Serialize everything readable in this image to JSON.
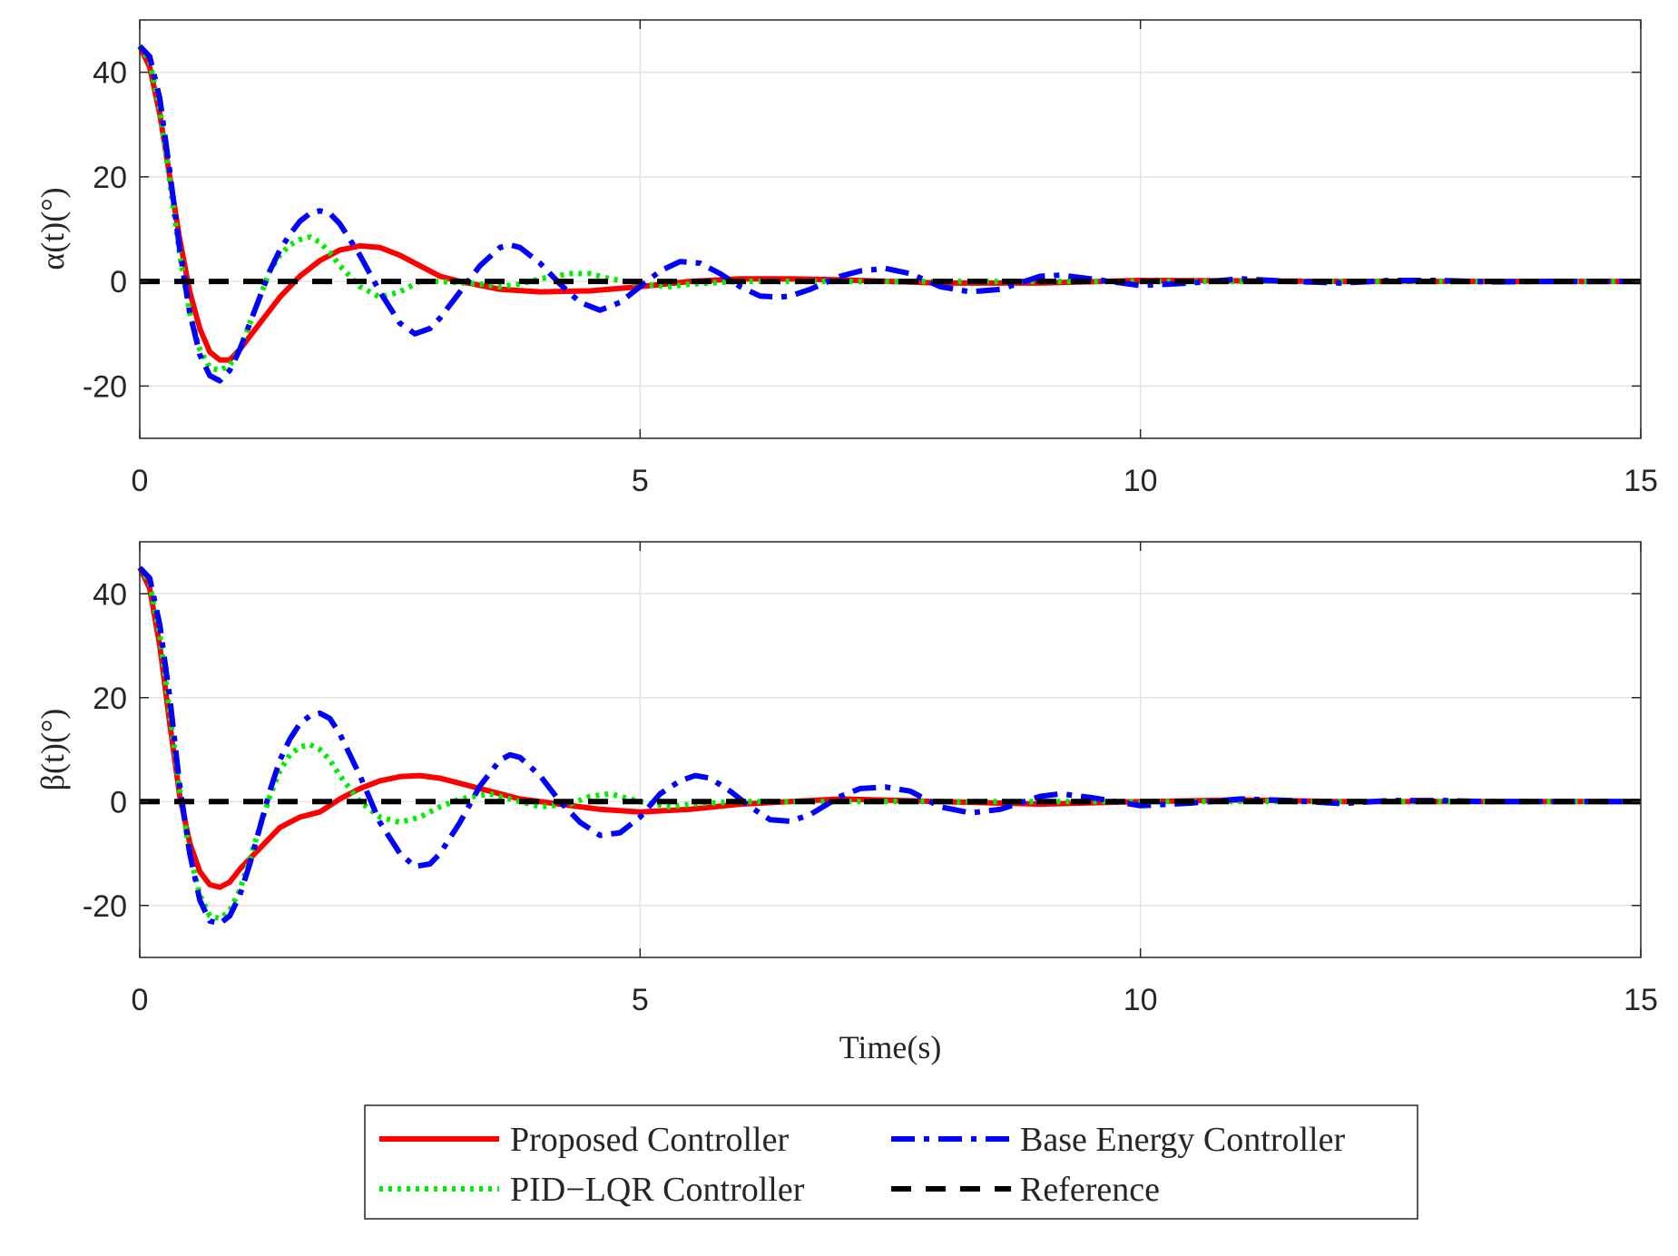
{
  "chart_data": [
    {
      "type": "line",
      "ylabel": "α(t)(°)",
      "xlabel": "",
      "xlim": [
        0,
        15
      ],
      "ylim": [
        -30,
        50
      ],
      "xticks": [
        0,
        5,
        10,
        15
      ],
      "yticks": [
        -20,
        0,
        20,
        40
      ],
      "grid": true,
      "series": [
        {
          "name": "Proposed Controller",
          "color": "#ff0000",
          "style": "solid",
          "x": [
            0,
            0.1,
            0.2,
            0.3,
            0.4,
            0.5,
            0.6,
            0.7,
            0.8,
            0.9,
            1.0,
            1.2,
            1.4,
            1.6,
            1.8,
            2.0,
            2.2,
            2.4,
            2.6,
            2.8,
            3.0,
            3.2,
            3.6,
            4.0,
            4.5,
            5.0,
            5.5,
            6.0,
            6.5,
            7.0,
            8.0,
            9.0,
            10.0,
            11.0,
            12.0,
            13.0,
            14.0,
            15.0
          ],
          "y": [
            45,
            41,
            32,
            20,
            8,
            -2,
            -9,
            -13.5,
            -15,
            -15,
            -13,
            -8,
            -3,
            1,
            4,
            6,
            6.8,
            6.5,
            5,
            3,
            1,
            0,
            -1.5,
            -2,
            -1.8,
            -1,
            0,
            0.5,
            0.5,
            0.3,
            -0.3,
            -0.3,
            0.2,
            0.1,
            0,
            0,
            0,
            0
          ]
        },
        {
          "name": "Base Energy Controller",
          "color": "#0000ff",
          "style": "dashdot",
          "x": [
            0,
            0.1,
            0.2,
            0.3,
            0.4,
            0.5,
            0.6,
            0.7,
            0.8,
            0.9,
            1.0,
            1.1,
            1.2,
            1.3,
            1.4,
            1.5,
            1.6,
            1.7,
            1.8,
            1.9,
            2.0,
            2.2,
            2.4,
            2.6,
            2.75,
            2.9,
            3.0,
            3.2,
            3.4,
            3.6,
            3.7,
            3.8,
            4.0,
            4.2,
            4.4,
            4.6,
            4.8,
            5.0,
            5.2,
            5.4,
            5.6,
            5.8,
            6.0,
            6.2,
            6.4,
            6.5,
            6.7,
            7.0,
            7.2,
            7.45,
            7.7,
            8.0,
            8.3,
            8.6,
            9.0,
            9.2,
            9.5,
            10.0,
            10.5,
            11.0,
            11.5,
            12.0,
            12.5,
            13.0,
            13.5,
            14.0,
            14.5,
            15.0
          ],
          "y": [
            45,
            43,
            35,
            21,
            6,
            -6,
            -14,
            -18,
            -19,
            -17,
            -13,
            -8,
            -3,
            2,
            6,
            9,
            11.5,
            13,
            13.5,
            13,
            11,
            5,
            -2,
            -8,
            -10,
            -9,
            -7,
            -2,
            3,
            6.5,
            7,
            6.5,
            3.5,
            -0.5,
            -4,
            -5.5,
            -4,
            -1,
            2,
            3.8,
            3.5,
            1.5,
            -1,
            -2.8,
            -3,
            -2.8,
            -1.5,
            1,
            2,
            2.5,
            1.5,
            -1,
            -2,
            -1.5,
            1,
            1.2,
            0.5,
            -0.8,
            -0.3,
            0.5,
            0,
            -0.3,
            0.2,
            0.2,
            -0.1,
            0,
            0,
            0
          ]
        },
        {
          "name": "PID−LQR Controller",
          "color": "#00ee00",
          "style": "dotted",
          "x": [
            0,
            0.1,
            0.2,
            0.3,
            0.4,
            0.5,
            0.6,
            0.7,
            0.8,
            0.9,
            1.0,
            1.1,
            1.2,
            1.3,
            1.4,
            1.5,
            1.6,
            1.7,
            1.8,
            1.9,
            2.0,
            2.2,
            2.4,
            2.6,
            2.8,
            3.0,
            3.4,
            3.6,
            3.8,
            4.0,
            4.3,
            4.5,
            4.7,
            5.0,
            5.3,
            5.5,
            6.0,
            6.5,
            7.0,
            8.0,
            9.0,
            10.0,
            11.0,
            12.0,
            13.0,
            14.0,
            15.0
          ],
          "y": [
            45,
            42,
            33,
            19,
            5,
            -6,
            -13,
            -16.5,
            -17,
            -16,
            -13,
            -8,
            -3,
            2,
            5,
            7,
            8,
            8.5,
            7.5,
            5.5,
            3,
            -1,
            -3,
            -2,
            0,
            0,
            -0.5,
            -1,
            -0.5,
            0.5,
            1.5,
            1.5,
            0.5,
            -0.5,
            -1,
            -0.5,
            0,
            0,
            0,
            0,
            0,
            0,
            0,
            0,
            0,
            0,
            0
          ]
        },
        {
          "name": "Reference",
          "color": "#000000",
          "style": "dashed",
          "x": [
            0,
            15
          ],
          "y": [
            0,
            0
          ]
        }
      ]
    },
    {
      "type": "line",
      "ylabel": "β(t)(°)",
      "xlabel": "Time(s)",
      "xlim": [
        0,
        15
      ],
      "ylim": [
        -30,
        50
      ],
      "xticks": [
        0,
        5,
        10,
        15
      ],
      "yticks": [
        -20,
        0,
        20,
        40
      ],
      "grid": true,
      "series": [
        {
          "name": "Proposed Controller",
          "color": "#ff0000",
          "style": "solid",
          "x": [
            0,
            0.1,
            0.2,
            0.3,
            0.4,
            0.5,
            0.6,
            0.7,
            0.8,
            0.9,
            1.0,
            1.1,
            1.2,
            1.3,
            1.4,
            1.6,
            1.8,
            2.0,
            2.2,
            2.4,
            2.6,
            2.8,
            3.0,
            3.2,
            3.5,
            3.8,
            4.2,
            4.6,
            5.0,
            5.5,
            6.0,
            6.5,
            7.0,
            8.0,
            9.0,
            10.0,
            11.0,
            12.0,
            13.0,
            14.0,
            15.0
          ],
          "y": [
            45,
            41,
            30,
            15,
            1,
            -8,
            -13.5,
            -16,
            -16.5,
            -15.5,
            -13,
            -11,
            -9,
            -7,
            -5,
            -3,
            -2,
            0.5,
            2.5,
            4,
            4.8,
            5,
            4.5,
            3.5,
            2,
            0.5,
            -0.5,
            -1.5,
            -2,
            -1.5,
            -0.5,
            0,
            0.5,
            0,
            -0.5,
            0,
            0.3,
            0,
            0,
            0,
            0
          ]
        },
        {
          "name": "Base Energy Controller",
          "color": "#0000ff",
          "style": "dashdot",
          "x": [
            0,
            0.1,
            0.2,
            0.3,
            0.4,
            0.5,
            0.6,
            0.7,
            0.8,
            0.9,
            1.0,
            1.1,
            1.2,
            1.3,
            1.4,
            1.5,
            1.6,
            1.7,
            1.8,
            1.9,
            2.0,
            2.2,
            2.4,
            2.6,
            2.75,
            2.9,
            3.0,
            3.2,
            3.4,
            3.6,
            3.7,
            3.8,
            4.0,
            4.2,
            4.4,
            4.6,
            4.8,
            5.0,
            5.2,
            5.4,
            5.55,
            5.7,
            5.9,
            6.1,
            6.3,
            6.5,
            6.7,
            7.0,
            7.2,
            7.45,
            7.7,
            8.0,
            8.3,
            8.6,
            9.0,
            9.2,
            9.5,
            10.0,
            10.5,
            11.0,
            11.5,
            12.0,
            12.5,
            13.0,
            13.5,
            14.0,
            14.5,
            15.0
          ],
          "y": [
            45,
            43,
            34,
            20,
            3,
            -10,
            -19,
            -23,
            -23.5,
            -22,
            -18,
            -12,
            -5,
            2,
            8,
            12,
            15,
            16.5,
            17,
            16,
            13,
            5,
            -4,
            -10,
            -12.5,
            -12,
            -10,
            -4,
            3,
            8,
            9,
            8.5,
            5,
            0,
            -4,
            -6.5,
            -6,
            -3,
            1.5,
            4,
            5,
            4.5,
            2,
            -1,
            -3.5,
            -3.8,
            -2.5,
            1,
            2.5,
            2.8,
            2,
            -1,
            -2.2,
            -1.5,
            1,
            1.5,
            0.8,
            -0.8,
            -0.3,
            0.5,
            0.2,
            -0.4,
            0.2,
            0.2,
            0,
            0,
            0,
            0
          ]
        },
        {
          "name": "PID−LQR Controller",
          "color": "#00ee00",
          "style": "dotted",
          "x": [
            0,
            0.1,
            0.2,
            0.3,
            0.4,
            0.5,
            0.6,
            0.7,
            0.8,
            0.9,
            1.0,
            1.1,
            1.2,
            1.3,
            1.4,
            1.5,
            1.6,
            1.7,
            1.8,
            1.9,
            2.0,
            2.2,
            2.4,
            2.6,
            2.8,
            3.0,
            3.2,
            3.5,
            3.8,
            4.0,
            4.3,
            4.5,
            4.7,
            5.0,
            5.3,
            5.5,
            6.0,
            6.5,
            7.0,
            8.0,
            9.0,
            10.0,
            11.0,
            12.0,
            13.0,
            14.0,
            15.0
          ],
          "y": [
            45,
            42,
            32,
            17,
            2,
            -10,
            -18,
            -22,
            -22.5,
            -21,
            -17,
            -11,
            -5,
            1,
            6,
            9,
            10.5,
            11,
            10,
            8,
            5,
            0,
            -3,
            -4,
            -3,
            -1,
            0.5,
            1.5,
            0,
            -1,
            -0.5,
            1,
            1.5,
            0,
            -1,
            -0.5,
            0,
            0,
            0,
            0,
            0,
            0,
            0,
            0,
            0,
            0,
            0
          ]
        },
        {
          "name": "Reference",
          "color": "#000000",
          "style": "dashed",
          "x": [
            0,
            15
          ],
          "y": [
            0,
            0
          ]
        }
      ]
    }
  ],
  "legend": {
    "placement": "bottom-center",
    "items": [
      {
        "label": "Proposed Controller",
        "color": "#ff0000",
        "style": "solid"
      },
      {
        "label": "Base Energy Controller",
        "color": "#0000ff",
        "style": "dashdot"
      },
      {
        "label": "PID−LQR Controller",
        "color": "#00ee00",
        "style": "dotted"
      },
      {
        "label": "Reference",
        "color": "#000000",
        "style": "dashed"
      }
    ]
  }
}
